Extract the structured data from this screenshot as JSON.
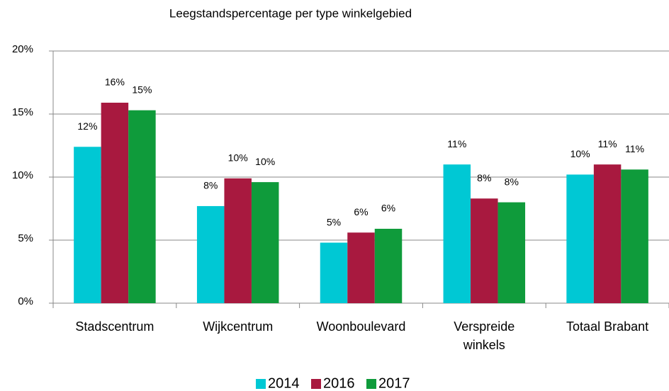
{
  "chart_data": {
    "type": "bar",
    "title": "Leegstandspercentage per type winkelgebied",
    "categories": [
      "Stadscentrum",
      "Wijkcentrum",
      "Woonboulevard",
      "Verspreide winkels",
      "Totaal Brabant"
    ],
    "series": [
      {
        "name": "2014",
        "color": "#00c8d4",
        "values": [
          12.4,
          7.7,
          4.8,
          11.0,
          10.2
        ],
        "value_labels": [
          "12%",
          "8%",
          "5%",
          "11%",
          "10%"
        ]
      },
      {
        "name": "2016",
        "color": "#a8193f",
        "values": [
          15.9,
          9.9,
          5.6,
          8.3,
          11.0
        ],
        "value_labels": [
          "16%",
          "10%",
          "6%",
          "8%",
          "11%"
        ]
      },
      {
        "name": "2017",
        "color": "#0f9b3b",
        "values": [
          15.3,
          9.6,
          5.9,
          8.0,
          10.6
        ],
        "value_labels": [
          "15%",
          "10%",
          "6%",
          "8%",
          "11%"
        ]
      }
    ],
    "ylim": [
      0,
      20
    ],
    "yticks": [
      {
        "value": 0,
        "label": "0%"
      },
      {
        "value": 5,
        "label": "5%"
      },
      {
        "value": 10,
        "label": "10%"
      },
      {
        "value": 15,
        "label": "15%"
      },
      {
        "value": 20,
        "label": "20%"
      }
    ],
    "grid": true,
    "legend": "bottom"
  }
}
